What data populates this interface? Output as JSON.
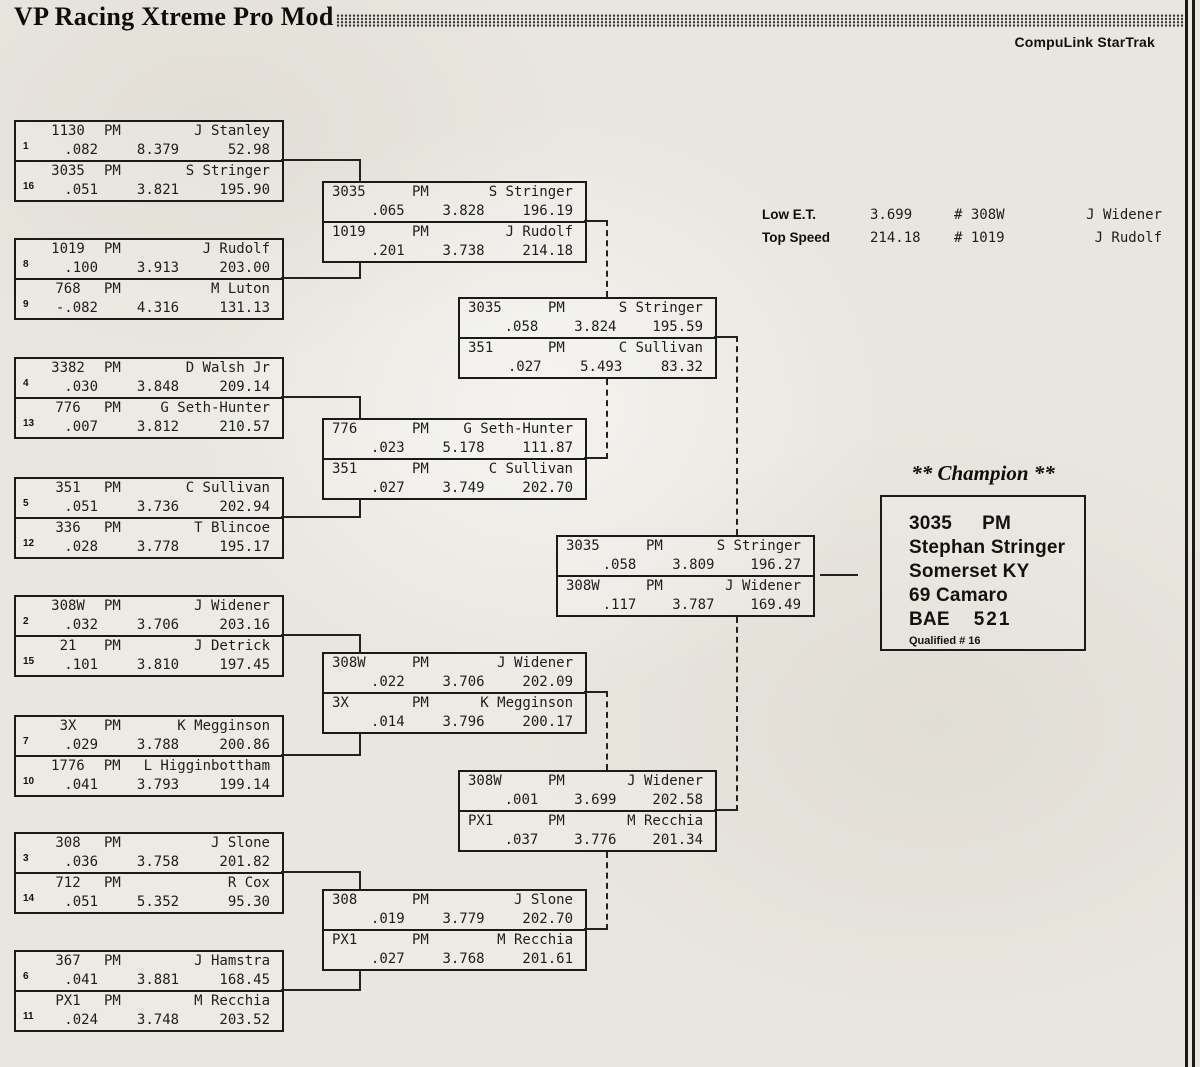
{
  "header": {
    "title": "VP Racing Xtreme Pro Mod",
    "brand": "CompuLink StarTrak"
  },
  "stats": {
    "rows": [
      {
        "label": "Low E.T.",
        "value": "3.699",
        "car": "# 308W",
        "driver": "J Widener"
      },
      {
        "label": "Top Speed",
        "value": "214.18",
        "car": "# 1019",
        "driver": "J Rudolf"
      }
    ]
  },
  "champion": {
    "heading": "** Champion **",
    "car_number": "3035",
    "car_class": "PM",
    "name": "Stephan Stringer",
    "hometown": "Somerset KY",
    "vehicle": "69 Camaro",
    "engine_make": "BAE",
    "engine_size": "521",
    "qualified": "Qualified # 16"
  },
  "bracket": {
    "round1": [
      {
        "entries": [
          {
            "seed": "1",
            "car": "1130",
            "cls": "PM",
            "driver": "J Stanley",
            "rt": ".082",
            "et": "8.379",
            "speed": "52.98"
          },
          {
            "seed": "16",
            "car": "3035",
            "cls": "PM",
            "driver": "S Stringer",
            "rt": ".051",
            "et": "3.821",
            "speed": "195.90"
          }
        ]
      },
      {
        "entries": [
          {
            "seed": "8",
            "car": "1019",
            "cls": "PM",
            "driver": "J Rudolf",
            "rt": ".100",
            "et": "3.913",
            "speed": "203.00"
          },
          {
            "seed": "9",
            "car": "768",
            "cls": "PM",
            "driver": "M Luton",
            "rt": "-.082",
            "et": "4.316",
            "speed": "131.13"
          }
        ]
      },
      {
        "entries": [
          {
            "seed": "4",
            "car": "3382",
            "cls": "PM",
            "driver": "D Walsh Jr",
            "rt": ".030",
            "et": "3.848",
            "speed": "209.14"
          },
          {
            "seed": "13",
            "car": "776",
            "cls": "PM",
            "driver": "G Seth-Hunter",
            "rt": ".007",
            "et": "3.812",
            "speed": "210.57"
          }
        ]
      },
      {
        "entries": [
          {
            "seed": "5",
            "car": "351",
            "cls": "PM",
            "driver": "C Sullivan",
            "rt": ".051",
            "et": "3.736",
            "speed": "202.94"
          },
          {
            "seed": "12",
            "car": "336",
            "cls": "PM",
            "driver": "T Blincoe",
            "rt": ".028",
            "et": "3.778",
            "speed": "195.17"
          }
        ]
      },
      {
        "entries": [
          {
            "seed": "2",
            "car": "308W",
            "cls": "PM",
            "driver": "J Widener",
            "rt": ".032",
            "et": "3.706",
            "speed": "203.16"
          },
          {
            "seed": "15",
            "car": "21",
            "cls": "PM",
            "driver": "J Detrick",
            "rt": ".101",
            "et": "3.810",
            "speed": "197.45"
          }
        ]
      },
      {
        "entries": [
          {
            "seed": "7",
            "car": "3X",
            "cls": "PM",
            "driver": "K Megginson",
            "rt": ".029",
            "et": "3.788",
            "speed": "200.86"
          },
          {
            "seed": "10",
            "car": "1776",
            "cls": "PM",
            "driver": "L Higginbottham",
            "rt": ".041",
            "et": "3.793",
            "speed": "199.14"
          }
        ]
      },
      {
        "entries": [
          {
            "seed": "3",
            "car": "308",
            "cls": "PM",
            "driver": "J Slone",
            "rt": ".036",
            "et": "3.758",
            "speed": "201.82"
          },
          {
            "seed": "14",
            "car": "712",
            "cls": "PM",
            "driver": "R Cox",
            "rt": ".051",
            "et": "5.352",
            "speed": "95.30"
          }
        ]
      },
      {
        "entries": [
          {
            "seed": "6",
            "car": "367",
            "cls": "PM",
            "driver": "J Hamstra",
            "rt": ".041",
            "et": "3.881",
            "speed": "168.45"
          },
          {
            "seed": "11",
            "car": "PX1",
            "cls": "PM",
            "driver": "M Recchia",
            "rt": ".024",
            "et": "3.748",
            "speed": "203.52"
          }
        ]
      }
    ],
    "round2": [
      {
        "entries": [
          {
            "seed": "",
            "car": "3035",
            "cls": "PM",
            "driver": "S Stringer",
            "rt": ".065",
            "et": "3.828",
            "speed": "196.19"
          },
          {
            "seed": "",
            "car": "1019",
            "cls": "PM",
            "driver": "J Rudolf",
            "rt": ".201",
            "et": "3.738",
            "speed": "214.18"
          }
        ]
      },
      {
        "entries": [
          {
            "seed": "",
            "car": "776",
            "cls": "PM",
            "driver": "G Seth-Hunter",
            "rt": ".023",
            "et": "5.178",
            "speed": "111.87"
          },
          {
            "seed": "",
            "car": "351",
            "cls": "PM",
            "driver": "C Sullivan",
            "rt": ".027",
            "et": "3.749",
            "speed": "202.70"
          }
        ]
      },
      {
        "entries": [
          {
            "seed": "",
            "car": "308W",
            "cls": "PM",
            "driver": "J Widener",
            "rt": ".022",
            "et": "3.706",
            "speed": "202.09"
          },
          {
            "seed": "",
            "car": "3X",
            "cls": "PM",
            "driver": "K Megginson",
            "rt": ".014",
            "et": "3.796",
            "speed": "200.17"
          }
        ]
      },
      {
        "entries": [
          {
            "seed": "",
            "car": "308",
            "cls": "PM",
            "driver": "J Slone",
            "rt": ".019",
            "et": "3.779",
            "speed": "202.70"
          },
          {
            "seed": "",
            "car": "PX1",
            "cls": "PM",
            "driver": "M Recchia",
            "rt": ".027",
            "et": "3.768",
            "speed": "201.61"
          }
        ]
      }
    ],
    "semifinals": [
      {
        "entries": [
          {
            "seed": "",
            "car": "3035",
            "cls": "PM",
            "driver": "S Stringer",
            "rt": ".058",
            "et": "3.824",
            "speed": "195.59"
          },
          {
            "seed": "",
            "car": "351",
            "cls": "PM",
            "driver": "C Sullivan",
            "rt": ".027",
            "et": "5.493",
            "speed": "83.32"
          }
        ]
      },
      {
        "entries": [
          {
            "seed": "",
            "car": "308W",
            "cls": "PM",
            "driver": "J Widener",
            "rt": ".001",
            "et": "3.699",
            "speed": "202.58"
          },
          {
            "seed": "",
            "car": "PX1",
            "cls": "PM",
            "driver": "M Recchia",
            "rt": ".037",
            "et": "3.776",
            "speed": "201.34"
          }
        ]
      }
    ],
    "final": [
      {
        "entries": [
          {
            "seed": "",
            "car": "3035",
            "cls": "PM",
            "driver": "S Stringer",
            "rt": ".058",
            "et": "3.809",
            "speed": "196.27"
          },
          {
            "seed": "",
            "car": "308W",
            "cls": "PM",
            "driver": "J Widener",
            "rt": ".117",
            "et": "3.787",
            "speed": "169.49"
          }
        ]
      }
    ]
  }
}
